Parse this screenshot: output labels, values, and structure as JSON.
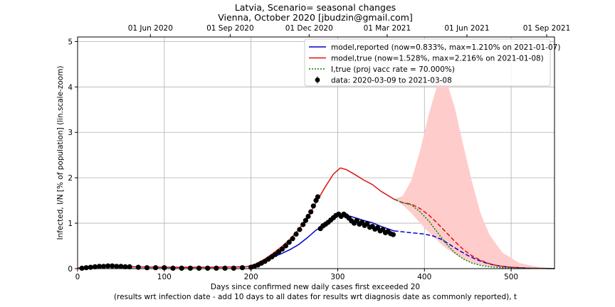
{
  "chart_data": {
    "type": "line",
    "title": "Latvia, Scenario= seasonal changes",
    "subtitle": "Vienna, October 2020 [jbudzin@gmail.com]",
    "xlabel": "Days since confirmed new daily cases first exceeded 20",
    "xlabel2": "(results wrt infection date - add 10 days to all dates for results wrt diagnosis date as commonly reported), t",
    "ylabel": "Infected, I/N [% of population] (lin.scale-zoom)",
    "xlim": [
      0,
      550
    ],
    "ylim": [
      0,
      5.1
    ],
    "x_ticks": [
      "0",
      "100",
      "200",
      "300",
      "400",
      "500"
    ],
    "y_ticks": [
      "0",
      "1",
      "2",
      "3",
      "4",
      "5"
    ],
    "top_axis_ticks": [
      {
        "day": 84,
        "label": "01 Jun 2020"
      },
      {
        "day": 176,
        "label": "01 Sep 2020"
      },
      {
        "day": 267,
        "label": "01 Dec 2020"
      },
      {
        "day": 357,
        "label": "01 Mar 2021"
      },
      {
        "day": 449,
        "label": "01 Jun 2021"
      },
      {
        "day": 541,
        "label": "01 Sep 2021"
      }
    ],
    "grid": true,
    "legend_position": "top-right",
    "legend": [
      {
        "label": "model,reported (now=0.833%, max=1.210% on 2021-01-07)",
        "color": "#0000cc",
        "style": "solid"
      },
      {
        "label": "model,true (now=1.528%, max=2.216% on 2021-01-08)",
        "color": "#dd1111",
        "style": "solid"
      },
      {
        "label": "I,true (proj vacc rate = 70.000%)",
        "color": "#008000",
        "style": "dotted"
      },
      {
        "label": "data: 2020-03-09 to 2021-03-08",
        "color": "#000000",
        "style": "marker"
      }
    ],
    "series": [
      {
        "name": "model,reported (now=0.833%, max=1.210% on 2021-01-07)",
        "color": "#0000cc",
        "x": [
          0,
          10,
          30,
          60,
          100,
          150,
          195,
          205,
          215,
          225,
          235,
          245,
          255,
          265,
          275,
          285,
          295,
          303,
          310,
          320,
          330,
          340,
          350,
          365
        ],
        "y": [
          0.01,
          0.04,
          0.05,
          0.04,
          0.03,
          0.03,
          0.04,
          0.09,
          0.16,
          0.25,
          0.33,
          0.42,
          0.53,
          0.68,
          0.85,
          0.95,
          1.12,
          1.2,
          1.18,
          1.12,
          1.06,
          1.01,
          0.93,
          0.83
        ]
      },
      {
        "name": "model,reported projection",
        "color": "#0000cc",
        "dashed": true,
        "x": [
          365,
          380,
          400,
          410,
          420,
          430,
          440,
          450,
          460,
          470,
          480,
          490,
          500,
          520,
          550
        ],
        "y": [
          0.83,
          0.8,
          0.76,
          0.72,
          0.64,
          0.52,
          0.4,
          0.29,
          0.2,
          0.13,
          0.08,
          0.05,
          0.03,
          0.01,
          0.0
        ]
      },
      {
        "name": "model,true (now=1.528%, max=2.216% on 2021-01-08)",
        "color": "#dd1111",
        "x": [
          0,
          10,
          30,
          60,
          100,
          150,
          195,
          205,
          215,
          225,
          235,
          245,
          255,
          265,
          275,
          285,
          295,
          303,
          310,
          320,
          330,
          340,
          350,
          365
        ],
        "y": [
          0.01,
          0.04,
          0.05,
          0.04,
          0.03,
          0.03,
          0.04,
          0.1,
          0.2,
          0.33,
          0.48,
          0.65,
          0.86,
          1.12,
          1.45,
          1.78,
          2.08,
          2.216,
          2.18,
          2.07,
          1.95,
          1.85,
          1.7,
          1.528
        ]
      },
      {
        "name": "model,true projection",
        "color": "#dd1111",
        "dashed": true,
        "x": [
          365,
          375,
          385,
          395,
          405,
          415,
          425,
          435,
          445,
          455,
          465,
          475,
          485,
          500,
          520,
          550
        ],
        "y": [
          1.528,
          1.45,
          1.42,
          1.32,
          1.18,
          1.0,
          0.8,
          0.6,
          0.42,
          0.28,
          0.18,
          0.11,
          0.06,
          0.03,
          0.01,
          0.0
        ]
      },
      {
        "name": "I,true (proj vacc rate = 70.000%)",
        "color": "#008000",
        "dotted": true,
        "x": [
          365,
          375,
          385,
          395,
          405,
          415,
          425,
          435,
          445,
          455,
          465,
          475,
          490,
          510,
          550
        ],
        "y": [
          1.528,
          1.45,
          1.4,
          1.25,
          1.05,
          0.8,
          0.55,
          0.35,
          0.21,
          0.12,
          0.07,
          0.04,
          0.02,
          0.01,
          0.0
        ]
      }
    ],
    "band": {
      "name": "projection uncertainty",
      "color": "#ffcccc",
      "x": [
        365,
        375,
        385,
        395,
        405,
        415,
        420,
        425,
        435,
        445,
        455,
        465,
        475,
        490,
        510,
        530,
        550
      ],
      "upper": [
        1.528,
        1.6,
        1.95,
        2.6,
        3.4,
        4.05,
        4.25,
        4.15,
        3.55,
        2.7,
        1.9,
        1.2,
        0.75,
        0.35,
        0.12,
        0.04,
        0.01
      ],
      "lower": [
        1.528,
        1.4,
        1.22,
        1.0,
        0.8,
        0.62,
        0.53,
        0.45,
        0.32,
        0.21,
        0.13,
        0.08,
        0.05,
        0.02,
        0.01,
        0.0,
        0.0
      ]
    },
    "data_points": {
      "name": "data: 2020-03-09 to 2021-03-08",
      "color": "#000000",
      "x": [
        5,
        10,
        15,
        20,
        25,
        30,
        35,
        40,
        45,
        50,
        55,
        60,
        70,
        80,
        90,
        100,
        110,
        120,
        130,
        140,
        150,
        160,
        170,
        180,
        190,
        200,
        204,
        208,
        212,
        216,
        220,
        224,
        228,
        232,
        236,
        240,
        244,
        248,
        252,
        256,
        260,
        263,
        266,
        269,
        272,
        275,
        277,
        280,
        283,
        286,
        289,
        292,
        295,
        298,
        301,
        304,
        307,
        310,
        313,
        316,
        319,
        322,
        325,
        328,
        331,
        334,
        337,
        340,
        343,
        346,
        349,
        352,
        355,
        358,
        361,
        364
      ],
      "y": [
        0.01,
        0.02,
        0.03,
        0.04,
        0.05,
        0.05,
        0.06,
        0.06,
        0.05,
        0.05,
        0.04,
        0.04,
        0.03,
        0.02,
        0.02,
        0.02,
        0.01,
        0.01,
        0.01,
        0.01,
        0.01,
        0.01,
        0.01,
        0.01,
        0.02,
        0.03,
        0.05,
        0.08,
        0.12,
        0.16,
        0.21,
        0.26,
        0.31,
        0.37,
        0.43,
        0.5,
        0.58,
        0.66,
        0.76,
        0.86,
        0.97,
        1.06,
        1.15,
        1.25,
        1.38,
        1.5,
        1.58,
        0.88,
        0.94,
        0.98,
        1.02,
        1.07,
        1.12,
        1.17,
        1.2,
        1.15,
        1.2,
        1.16,
        1.11,
        1.05,
        1.0,
        1.06,
        0.98,
        1.02,
        0.95,
        0.99,
        0.91,
        0.93,
        0.87,
        0.9,
        0.83,
        0.86,
        0.79,
        0.82,
        0.77,
        0.75
      ]
    }
  }
}
